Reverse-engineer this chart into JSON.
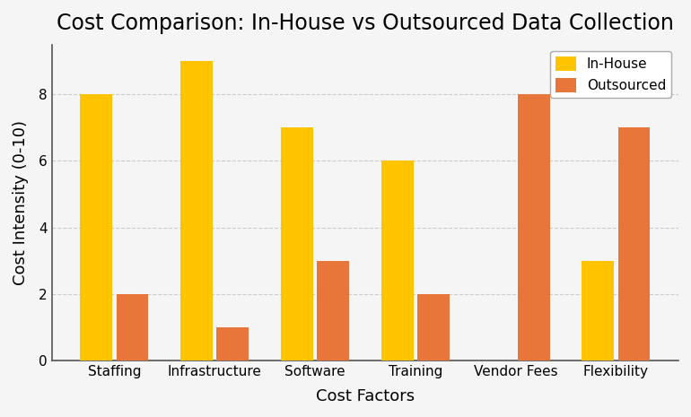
{
  "title": "Cost Comparison: In-House vs Outsourced Data Collection",
  "xlabel": "Cost Factors",
  "ylabel": "Cost Intensity (0-10)",
  "categories": [
    "Staffing",
    "Infrastructure",
    "Software",
    "Training",
    "Vendor Fees",
    "Flexibility"
  ],
  "inhouse_values": [
    8,
    9,
    7,
    6,
    0,
    3
  ],
  "outsourced_values": [
    2,
    1,
    3,
    2,
    8,
    7
  ],
  "inhouse_color": "#FFC300",
  "outsourced_color": "#E8763A",
  "bar_width": 0.32,
  "ylim": [
    0,
    9.5
  ],
  "yticks": [
    0,
    2,
    4,
    6,
    8
  ],
  "legend_labels": [
    "In-House",
    "Outsourced"
  ],
  "title_fontsize": 17,
  "axis_label_fontsize": 13,
  "tick_fontsize": 11,
  "legend_fontsize": 11,
  "background_color": "#f5f5f5",
  "figsize": [
    7.7,
    4.65
  ],
  "dpi": 100
}
